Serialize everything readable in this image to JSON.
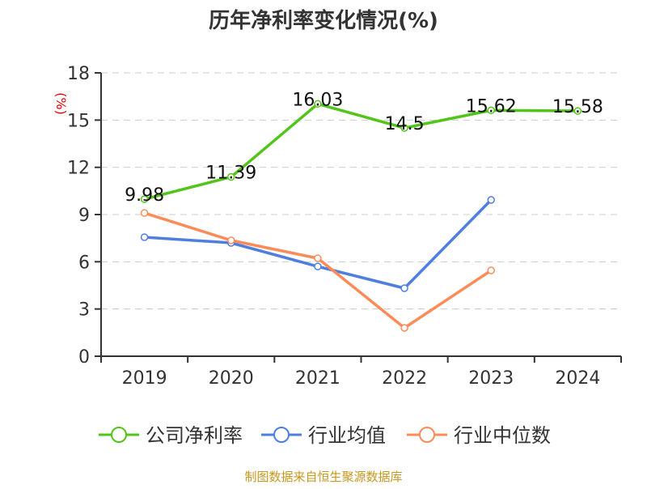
{
  "chart_data": {
    "type": "line",
    "title": "历年净利率变化情况(%)",
    "ylabel": "(%)",
    "xlabel": "",
    "categories": [
      "2019",
      "2020",
      "2021",
      "2022",
      "2023",
      "2024"
    ],
    "ylim": [
      0,
      18
    ],
    "yticks": [
      0,
      3,
      6,
      9,
      12,
      15,
      18
    ],
    "grid": true,
    "legend_position": "bottom",
    "series": [
      {
        "name": "公司净利率",
        "color": "#52c41a",
        "values": [
          9.98,
          11.39,
          16.03,
          14.5,
          15.62,
          15.58
        ],
        "labels": [
          "9.98",
          "11.39",
          "16.03",
          "14.5",
          "15.62",
          "15.58"
        ]
      },
      {
        "name": "行业均值",
        "color": "#4e7fe0",
        "values": [
          7.56,
          7.2,
          5.7,
          4.32,
          9.93,
          null
        ]
      },
      {
        "name": "行业中位数",
        "color": "#fb8c5a",
        "values": [
          9.1,
          7.36,
          6.22,
          1.8,
          5.45,
          null
        ]
      }
    ]
  },
  "footer": "制图数据来自恒生聚源数据库"
}
